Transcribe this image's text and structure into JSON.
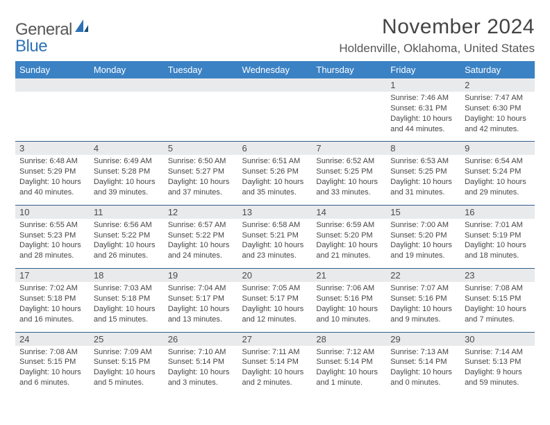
{
  "brand": {
    "general": "General",
    "blue": "Blue"
  },
  "title": "November 2024",
  "location": "Holdenville, Oklahoma, United States",
  "dow": [
    "Sunday",
    "Monday",
    "Tuesday",
    "Wednesday",
    "Thursday",
    "Friday",
    "Saturday"
  ],
  "colors": {
    "header_bg": "#3b82c4",
    "header_text": "#ffffff",
    "daynum_bg": "#e9eaeb",
    "daynum_border": "#2f5e87",
    "text": "#454545",
    "brand_gray": "#575757",
    "brand_blue": "#2d72b6",
    "page_bg": "#ffffff"
  },
  "weeks": [
    [
      null,
      null,
      null,
      null,
      null,
      {
        "n": "1",
        "sr": "7:46 AM",
        "ss": "6:31 PM",
        "dl": "10 hours and 44 minutes."
      },
      {
        "n": "2",
        "sr": "7:47 AM",
        "ss": "6:30 PM",
        "dl": "10 hours and 42 minutes."
      }
    ],
    [
      {
        "n": "3",
        "sr": "6:48 AM",
        "ss": "5:29 PM",
        "dl": "10 hours and 40 minutes."
      },
      {
        "n": "4",
        "sr": "6:49 AM",
        "ss": "5:28 PM",
        "dl": "10 hours and 39 minutes."
      },
      {
        "n": "5",
        "sr": "6:50 AM",
        "ss": "5:27 PM",
        "dl": "10 hours and 37 minutes."
      },
      {
        "n": "6",
        "sr": "6:51 AM",
        "ss": "5:26 PM",
        "dl": "10 hours and 35 minutes."
      },
      {
        "n": "7",
        "sr": "6:52 AM",
        "ss": "5:25 PM",
        "dl": "10 hours and 33 minutes."
      },
      {
        "n": "8",
        "sr": "6:53 AM",
        "ss": "5:25 PM",
        "dl": "10 hours and 31 minutes."
      },
      {
        "n": "9",
        "sr": "6:54 AM",
        "ss": "5:24 PM",
        "dl": "10 hours and 29 minutes."
      }
    ],
    [
      {
        "n": "10",
        "sr": "6:55 AM",
        "ss": "5:23 PM",
        "dl": "10 hours and 28 minutes."
      },
      {
        "n": "11",
        "sr": "6:56 AM",
        "ss": "5:22 PM",
        "dl": "10 hours and 26 minutes."
      },
      {
        "n": "12",
        "sr": "6:57 AM",
        "ss": "5:22 PM",
        "dl": "10 hours and 24 minutes."
      },
      {
        "n": "13",
        "sr": "6:58 AM",
        "ss": "5:21 PM",
        "dl": "10 hours and 23 minutes."
      },
      {
        "n": "14",
        "sr": "6:59 AM",
        "ss": "5:20 PM",
        "dl": "10 hours and 21 minutes."
      },
      {
        "n": "15",
        "sr": "7:00 AM",
        "ss": "5:20 PM",
        "dl": "10 hours and 19 minutes."
      },
      {
        "n": "16",
        "sr": "7:01 AM",
        "ss": "5:19 PM",
        "dl": "10 hours and 18 minutes."
      }
    ],
    [
      {
        "n": "17",
        "sr": "7:02 AM",
        "ss": "5:18 PM",
        "dl": "10 hours and 16 minutes."
      },
      {
        "n": "18",
        "sr": "7:03 AM",
        "ss": "5:18 PM",
        "dl": "10 hours and 15 minutes."
      },
      {
        "n": "19",
        "sr": "7:04 AM",
        "ss": "5:17 PM",
        "dl": "10 hours and 13 minutes."
      },
      {
        "n": "20",
        "sr": "7:05 AM",
        "ss": "5:17 PM",
        "dl": "10 hours and 12 minutes."
      },
      {
        "n": "21",
        "sr": "7:06 AM",
        "ss": "5:16 PM",
        "dl": "10 hours and 10 minutes."
      },
      {
        "n": "22",
        "sr": "7:07 AM",
        "ss": "5:16 PM",
        "dl": "10 hours and 9 minutes."
      },
      {
        "n": "23",
        "sr": "7:08 AM",
        "ss": "5:15 PM",
        "dl": "10 hours and 7 minutes."
      }
    ],
    [
      {
        "n": "24",
        "sr": "7:08 AM",
        "ss": "5:15 PM",
        "dl": "10 hours and 6 minutes."
      },
      {
        "n": "25",
        "sr": "7:09 AM",
        "ss": "5:15 PM",
        "dl": "10 hours and 5 minutes."
      },
      {
        "n": "26",
        "sr": "7:10 AM",
        "ss": "5:14 PM",
        "dl": "10 hours and 3 minutes."
      },
      {
        "n": "27",
        "sr": "7:11 AM",
        "ss": "5:14 PM",
        "dl": "10 hours and 2 minutes."
      },
      {
        "n": "28",
        "sr": "7:12 AM",
        "ss": "5:14 PM",
        "dl": "10 hours and 1 minute."
      },
      {
        "n": "29",
        "sr": "7:13 AM",
        "ss": "5:14 PM",
        "dl": "10 hours and 0 minutes."
      },
      {
        "n": "30",
        "sr": "7:14 AM",
        "ss": "5:13 PM",
        "dl": "9 hours and 59 minutes."
      }
    ]
  ],
  "labels": {
    "sunrise": "Sunrise: ",
    "sunset": "Sunset: ",
    "daylight": "Daylight: "
  }
}
